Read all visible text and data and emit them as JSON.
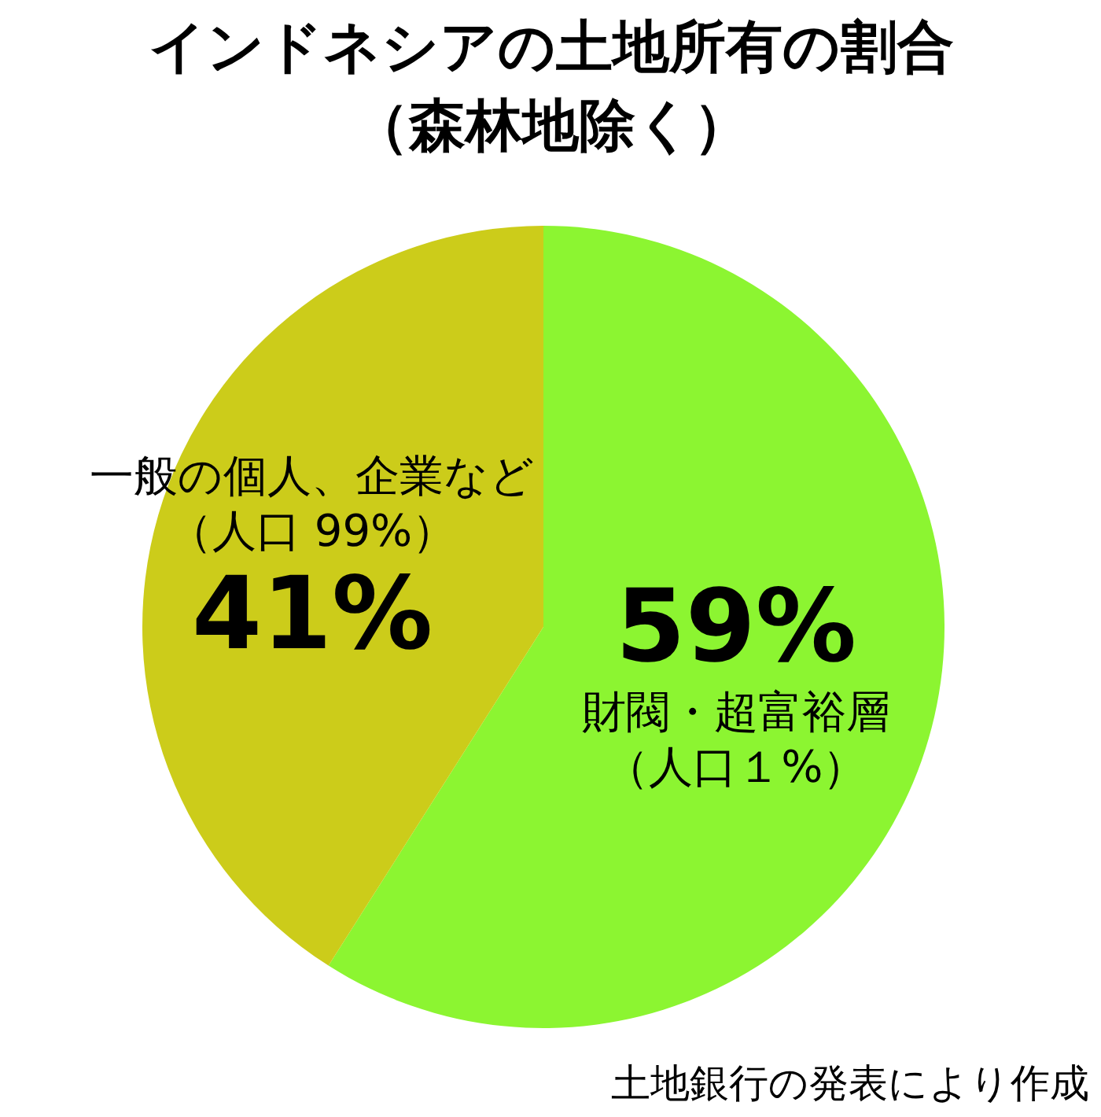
{
  "chart_data": {
    "type": "pie",
    "title": "インドネシアの土地所有の割合",
    "subtitle": "（森林地除く）",
    "categories": [
      "財閥・超富裕層（人口１%）",
      "一般の個人、企業など（人口 99%）"
    ],
    "values": [
      59,
      41
    ],
    "colors": [
      "#8cf531",
      "#cccc1a"
    ],
    "value_labels": [
      "59%",
      "41%"
    ],
    "annotations": [
      "土地銀行の発表により作成"
    ]
  }
}
